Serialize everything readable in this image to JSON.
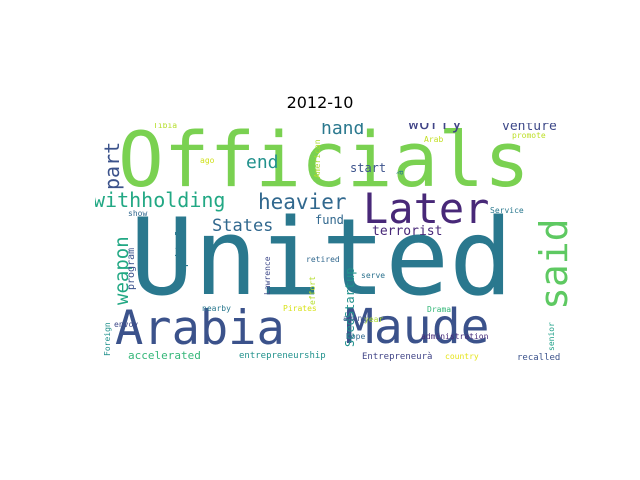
{
  "title": "2012-10",
  "words": [
    {
      "text": "United",
      "color": "#2a788e"
    },
    {
      "text": "Officials",
      "color": "#7ad151"
    },
    {
      "text": "Maude",
      "color": "#3b528b"
    },
    {
      "text": "Arabia",
      "color": "#3b528b"
    },
    {
      "text": "Later",
      "color": "#482878"
    },
    {
      "text": "said",
      "color": "#5ec962"
    },
    {
      "text": "withholding",
      "color": "#22a884"
    },
    {
      "text": "heavier",
      "color": "#31688e"
    },
    {
      "text": "weapon",
      "color": "#22a884"
    },
    {
      "text": "part",
      "color": "#3b528b"
    },
    {
      "text": "worry",
      "color": "#414487"
    },
    {
      "text": "hand",
      "color": "#2a788e"
    },
    {
      "text": "end",
      "color": "#21918c"
    },
    {
      "text": "States",
      "color": "#31688e"
    },
    {
      "text": "venture",
      "color": "#3e4989"
    },
    {
      "text": "terrorist",
      "color": "#482878"
    },
    {
      "text": "capital",
      "color": "#2a788e"
    },
    {
      "text": "fund",
      "color": "#31688e"
    },
    {
      "text": "start",
      "color": "#3b528b"
    },
    {
      "text": "SeedStartup",
      "color": "#21918c"
    },
    {
      "text": "program",
      "color": "#3b528b"
    },
    {
      "text": "accelerated",
      "color": "#35b779"
    },
    {
      "text": "entrepreneurship",
      "color": "#21918c"
    },
    {
      "text": "Tibia",
      "color": "#b5de2b"
    },
    {
      "text": "American",
      "color": "#addc30"
    },
    {
      "text": "Arab",
      "color": "#c2df23"
    },
    {
      "text": "promote",
      "color": "#bddf26"
    },
    {
      "text": "ago",
      "color": "#d0e11c"
    },
    {
      "text": "show",
      "color": "#31688e"
    },
    {
      "text": "Lawrence",
      "color": "#3e4989"
    },
    {
      "text": "effort",
      "color": "#b5de2b"
    },
    {
      "text": "retired",
      "color": "#31688e"
    },
    {
      "text": "serve",
      "color": "#2c728e"
    },
    {
      "text": "year",
      "color": "#addc30"
    },
    {
      "text": "among",
      "color": "#3b528b"
    },
    {
      "text": "Hope",
      "color": "#31688e"
    },
    {
      "text": "Drama",
      "color": "#35b779"
    },
    {
      "text": "Pirates",
      "color": "#d8e219"
    },
    {
      "text": "administration",
      "color": "#472d7b"
    },
    {
      "text": "Entrepreneurà",
      "color": "#414487"
    },
    {
      "text": "country",
      "color": "#e5e419"
    },
    {
      "text": "recalled",
      "color": "#3b528b"
    },
    {
      "text": "senior",
      "color": "#1fa088"
    },
    {
      "text": "Service",
      "color": "#2a788e"
    },
    {
      "text": "envoy",
      "color": "#3e4989"
    },
    {
      "text": "nearby",
      "color": "#2a788e"
    },
    {
      "text": "Foreign",
      "color": "#21918c"
    },
    {
      "text": "à",
      "color": "#2a788e"
    }
  ]
}
